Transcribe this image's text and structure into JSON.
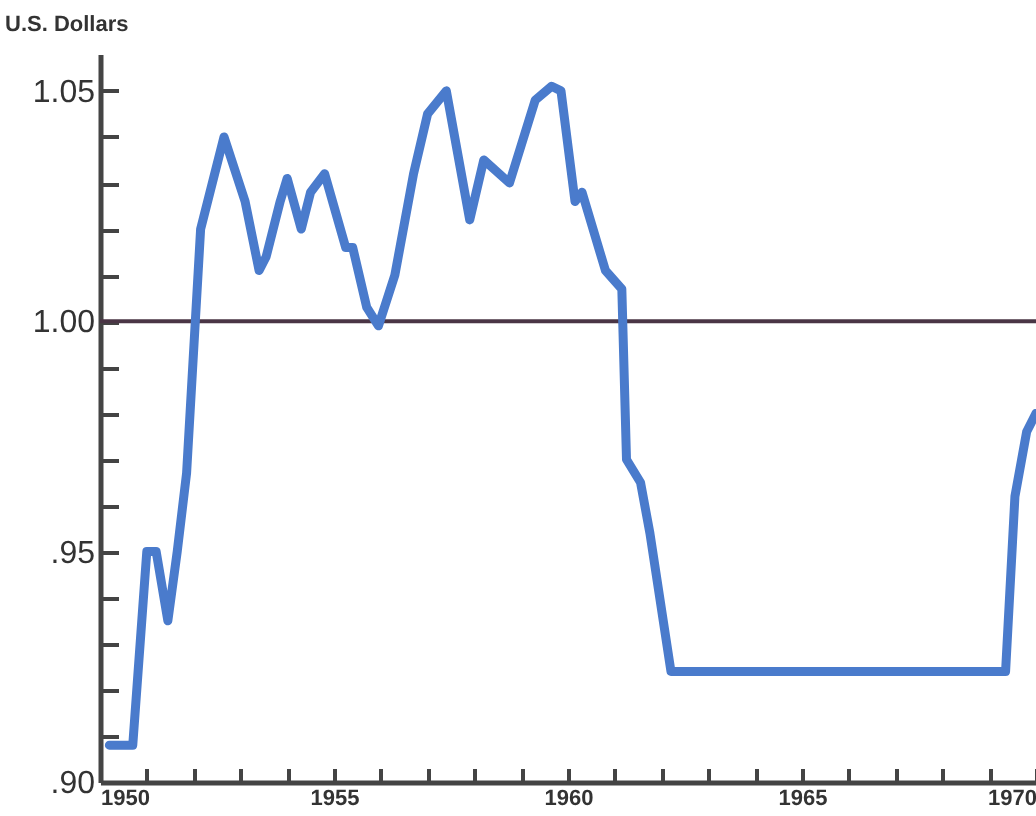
{
  "chart_data": {
    "type": "line",
    "ylabel": "U.S. Dollars",
    "x": [
      1950.2,
      1950.7,
      1951.0,
      1951.2,
      1951.45,
      1951.65,
      1951.85,
      1952.15,
      1952.65,
      1953.1,
      1953.4,
      1953.55,
      1953.85,
      1954.0,
      1954.3,
      1954.5,
      1954.8,
      1955.25,
      1955.4,
      1955.7,
      1955.95,
      1956.3,
      1956.7,
      1957.0,
      1957.4,
      1957.9,
      1958.2,
      1958.75,
      1959.3,
      1959.65,
      1959.85,
      1960.15,
      1960.3,
      1960.8,
      1961.15,
      1961.25,
      1961.55,
      1961.75,
      1962.2,
      1969.35,
      1969.55,
      1969.8,
      1970.0
    ],
    "series": [
      {
        "color": "#4a7bcc",
        "values": [
          0.908,
          0.908,
          0.95,
          0.95,
          0.935,
          0.95,
          0.967,
          1.02,
          1.04,
          1.026,
          1.011,
          1.014,
          1.026,
          1.031,
          1.02,
          1.028,
          1.032,
          1.016,
          1.016,
          1.003,
          0.999,
          1.01,
          1.032,
          1.045,
          1.05,
          1.022,
          1.035,
          1.03,
          1.048,
          1.051,
          1.05,
          1.026,
          1.028,
          1.011,
          1.007,
          0.97,
          0.965,
          0.954,
          0.924,
          0.924,
          0.962,
          0.976,
          0.98
        ]
      }
    ],
    "xlim": [
      1950,
      1970
    ],
    "xticks": [
      1950,
      {
        "value": 1951,
        "label": null
      },
      {
        "value": 1952,
        "label": null
      },
      {
        "value": 1953,
        "label": null
      },
      {
        "value": 1954,
        "label": null
      },
      1955,
      {
        "value": 1956,
        "label": null
      },
      {
        "value": 1957,
        "label": null
      },
      {
        "value": 1958,
        "label": null
      },
      {
        "value": 1959,
        "label": null
      },
      1960,
      {
        "value": 1961,
        "label": null
      },
      {
        "value": 1962,
        "label": null
      },
      {
        "value": 1963,
        "label": null
      },
      {
        "value": 1964,
        "label": null
      },
      1965,
      {
        "value": 1966,
        "label": null
      },
      {
        "value": 1967,
        "label": null
      },
      {
        "value": 1968,
        "label": null
      },
      {
        "value": 1969,
        "label": null
      },
      1970
    ],
    "ylim": [
      0.9,
      1.058
    ],
    "yticks": [
      {
        "value": 0.9,
        "label": ".90"
      },
      {
        "value": 0.91,
        "label": null
      },
      {
        "value": 0.92,
        "label": null
      },
      {
        "value": 0.93,
        "label": null
      },
      {
        "value": 0.94,
        "label": null
      },
      {
        "value": 0.95,
        "label": ".95"
      },
      {
        "value": 0.96,
        "label": null
      },
      {
        "value": 0.97,
        "label": null
      },
      {
        "value": 0.98,
        "label": null
      },
      {
        "value": 0.99,
        "label": null
      },
      {
        "value": 1.0,
        "label": "1.00"
      },
      {
        "value": 1.01,
        "label": null
      },
      {
        "value": 1.02,
        "label": null
      },
      {
        "value": 1.03,
        "label": null
      },
      {
        "value": 1.04,
        "label": null
      },
      {
        "value": 1.05,
        "label": "1.05"
      }
    ],
    "ref_lines": [
      {
        "axis": "y",
        "value": 1.0,
        "color": "#4a3545"
      }
    ],
    "grid": false,
    "marker": "none",
    "line_style": "solid"
  }
}
